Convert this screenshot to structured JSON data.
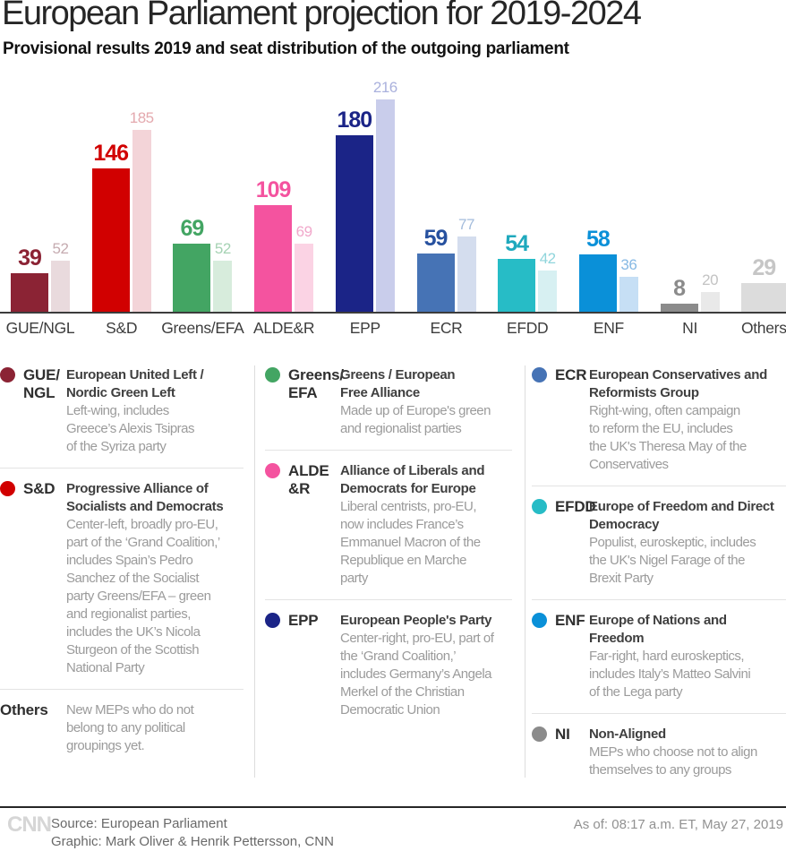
{
  "header": {
    "title": "European Parliament projection for 2019-2024",
    "subtitle": "Provisional results 2019 and seat distribution of the outgoing parliament"
  },
  "chart_data": {
    "type": "bar",
    "title": "European Parliament projection for 2019-2024",
    "subtitle": "Provisional results 2019 and seat distribution of the outgoing parliament",
    "categories": [
      "GUE/NGL",
      "S&D",
      "Greens/EFA",
      "ALDE&R",
      "EPP",
      "ECR",
      "EFDD",
      "ENF",
      "NI",
      "Others"
    ],
    "series": [
      {
        "name": "Provisional results 2019",
        "values": [
          39,
          146,
          69,
          109,
          180,
          59,
          54,
          58,
          8,
          null
        ]
      },
      {
        "name": "Outgoing parliament",
        "values": [
          52,
          185,
          52,
          69,
          216,
          77,
          42,
          36,
          20,
          29
        ]
      }
    ],
    "ylim": [
      0,
      216
    ],
    "grid": false,
    "legend_position": "below-as-descriptions",
    "groups": [
      {
        "label": "GUE/NGL",
        "dark_color": "#8b2334",
        "light_color": "#e9dadd",
        "dark_label_color": "#8b2334",
        "light_label_color": "#c5abb0"
      },
      {
        "label": "S&D",
        "dark_color": "#d10000",
        "light_color": "#f3d4d8",
        "dark_label_color": "#d10000",
        "light_label_color": "#e4a9ae"
      },
      {
        "label": "Greens/EFA",
        "dark_color": "#43a563",
        "light_color": "#d7ecdc",
        "dark_label_color": "#43a563",
        "light_label_color": "#a5d2b3"
      },
      {
        "label": "ALDE&R",
        "dark_color": "#f4539f",
        "light_color": "#fbd3e4",
        "dark_label_color": "#f4539f",
        "light_label_color": "#f1a8cb"
      },
      {
        "label": "EPP",
        "dark_color": "#1b2487",
        "light_color": "#c9cdeb",
        "dark_label_color": "#1b2487",
        "light_label_color": "#aab1dd"
      },
      {
        "label": "ECR",
        "dark_color": "#4673b5",
        "light_color": "#d4ddee",
        "dark_label_color": "#27519f",
        "light_label_color": "#a4bcdc"
      },
      {
        "label": "EFDD",
        "dark_color": "#27bcc6",
        "light_color": "#d7f0f2",
        "dark_label_color": "#1fa9bd",
        "light_label_color": "#90d5dc"
      },
      {
        "label": "ENF",
        "dark_color": "#0a90d8",
        "light_color": "#c6dff5",
        "dark_label_color": "#0a90d8",
        "light_label_color": "#87b9e4"
      },
      {
        "label": "NI",
        "dark_color": "#8b8b8b",
        "light_color": "#e9e9e9",
        "dark_label_color": "#8b8b8b",
        "light_label_color": "#c3c3c3"
      },
      {
        "label": "Others",
        "dark_color": null,
        "light_color": "#dcdcdc",
        "dark_label_color": null,
        "light_label_color": "#c6c6c6"
      }
    ]
  },
  "legend": {
    "columns": [
      {
        "entries": [
          {
            "abbrev": "GUE/\nNGL",
            "dot": "#8b2334",
            "name": "European United Left /\nNordic Green Left",
            "desc": "Left-wing, includes\nGreece’s Alexis Tsipras\nof the Syriza party"
          },
          {
            "abbrev": "S&D",
            "dot": "#d10000",
            "name": "Progressive Alliance of\nSocialists and Democrats",
            "desc": "Center-left, broadly pro-EU,\npart of the ‘Grand Coalition,’\nincludes Spain’s Pedro\nSanchez of the Socialist\nparty Greens/EFA – green\nand regionalist parties,\nincludes the UK’s Nicola\nSturgeon of the Scottish\nNational Party"
          },
          {
            "abbrev": "Others",
            "dot": null,
            "name": null,
            "desc": "New MEPs who do not\nbelong to any political\ngroupings yet."
          }
        ]
      },
      {
        "entries": [
          {
            "abbrev": "Greens/\nEFA",
            "dot": "#43a563",
            "name": "Greens / European\nFree Alliance",
            "desc": "Made up of Europe's green\nand regionalist parties"
          },
          {
            "abbrev": "ALDE\n&R",
            "dot": "#f4539f",
            "name": "Alliance of Liberals and\nDemocrats for Europe",
            "desc": "Liberal centrists, pro-EU,\nnow includes France’s\nEmmanuel Macron of the\nRepublique en Marche\nparty"
          },
          {
            "abbrev": "EPP",
            "dot": "#1b2487",
            "name": "European People's Party",
            "desc": "Center-right, pro-EU, part of\nthe ‘Grand Coalition,’\nincludes Germany’s Angela\nMerkel of the Christian\nDemocratic Union"
          }
        ]
      },
      {
        "entries": [
          {
            "abbrev": "ECR",
            "dot": "#4673b5",
            "name": "European Conservatives and\nReformists Group",
            "desc": "Right-wing, often campaign\nto reform the EU, includes\nthe UK's Theresa May of the\nConservatives"
          },
          {
            "abbrev": "EFDD",
            "dot": "#27bcc6",
            "name": "Europe of Freedom and Direct\nDemocracy",
            "desc": "Populist, euroskeptic, includes\nthe UK's Nigel Farage of the\nBrexit Party"
          },
          {
            "abbrev": "ENF",
            "dot": "#0a90d8",
            "name": "Europe of Nations and\nFreedom",
            "desc": "Far-right, hard euroskeptics,\nincludes Italy’s Matteo Salvini\nof the Lega party"
          },
          {
            "abbrev": "NI",
            "dot": "#8b8b8b",
            "name": "Non-Aligned",
            "desc": "MEPs who choose not to align\nthemselves to any groups"
          }
        ]
      }
    ]
  },
  "footer": {
    "logo": "CNN",
    "source": "Source: European Parliament",
    "credit": "Graphic: Mark Oliver & Henrik Pettersson, CNN",
    "as_of": "As of: 08:17 a.m. ET, May 27, 2019"
  }
}
